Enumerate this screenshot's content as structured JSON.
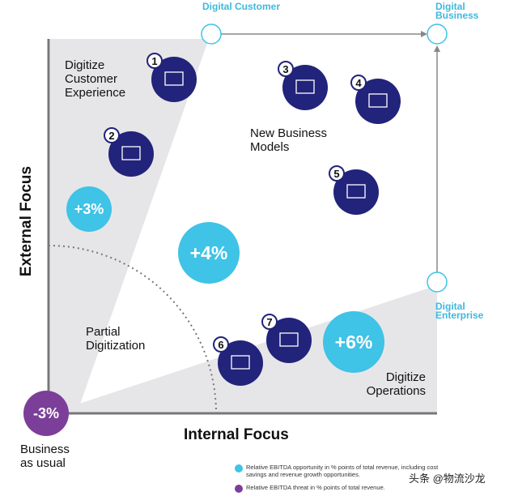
{
  "nodes": {
    "digital_customer": "Digital Customer",
    "digital_business": "Digital Business",
    "digital_enterprise": "Digital Enterprise"
  },
  "quadrants": {
    "customer": "Digitize Customer Experience",
    "new_models": "New Business Models",
    "partial": "Partial Digitization",
    "operations": "Digitize Operations",
    "usual": "Business as usual"
  },
  "axes": {
    "y": "External Focus",
    "x": "Internal Focus"
  },
  "values": {
    "customer": "+3%",
    "partial": "+4%",
    "operations": "+6%",
    "usual": "-3%"
  },
  "icons": [
    {
      "n": "1",
      "icon": "monitor-card-icon"
    },
    {
      "n": "2",
      "icon": "layers-icon"
    },
    {
      "n": "3",
      "icon": "3d-printer-icon"
    },
    {
      "n": "4",
      "icon": "frame-icon"
    },
    {
      "n": "5",
      "icon": "network-cube-icon"
    },
    {
      "n": "6",
      "icon": "delivery-truck-icon"
    },
    {
      "n": "7",
      "icon": "monitor-chart-icon"
    }
  ],
  "legend": {
    "opportunity": "Relative EBITDA opportunity in % points of total revenue, including cost savings and revenue growth opportunities.",
    "threat": "Relative EBITDA threat in % points of total revenue."
  },
  "watermark": "头条 @物流沙龙",
  "colors": {
    "navy": "#22237a",
    "cyan": "#3fc3e6",
    "purple": "#7b3f9a",
    "gray": "#e6e6e8"
  }
}
